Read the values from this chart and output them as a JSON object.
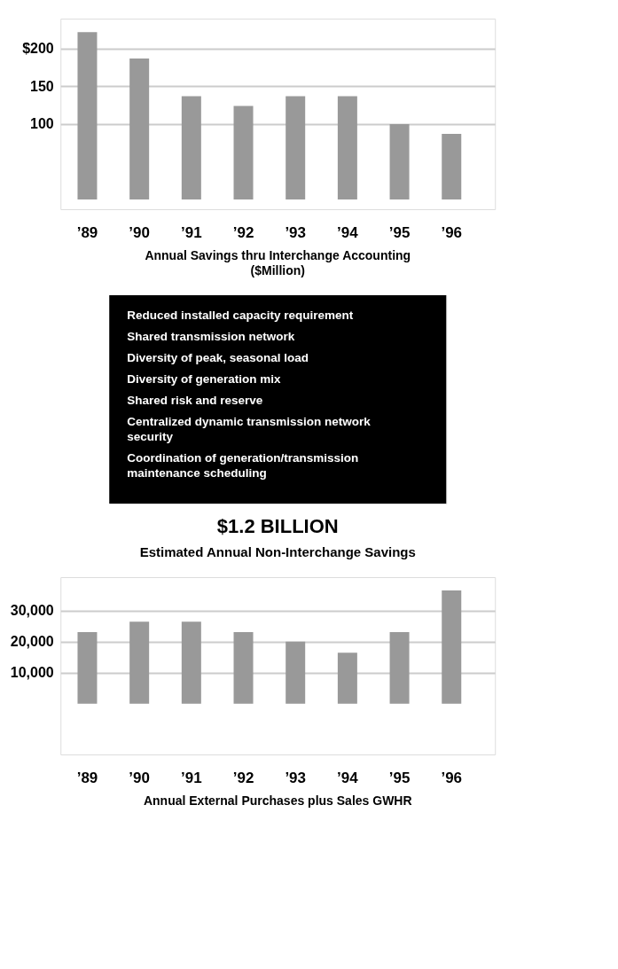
{
  "chart_data": [
    {
      "type": "bar",
      "title": "Annual Savings thru Interchange Accounting",
      "subtitle": "($Million)",
      "categories": [
        "’89",
        "’90",
        "’91",
        "’92",
        "’93",
        "’94",
        "’95",
        "’96"
      ],
      "values": [
        222,
        187,
        137,
        124,
        137,
        137,
        100,
        87
      ],
      "color": "#999999",
      "ylim": [
        -13,
        240
      ],
      "yticks": [
        {
          "value": 100,
          "label": "100"
        },
        {
          "value": 150,
          "label": "150"
        },
        {
          "value": 200,
          "label": "$200"
        }
      ],
      "grid": "y"
    },
    {
      "type": "other",
      "title": "$1.2 BILLION",
      "subtitle": "Estimated Annual Non-Interchange Savings",
      "annotations": [
        "Reduced installed capacity requirement",
        "Shared transmission network",
        "Diversity of peak, seasonal load",
        "Diversity of generation mix",
        "Shared risk and reserve",
        "Centralized dynamic transmission network\nsecurity",
        "Coordination of generation/transmission\nmaintenance scheduling"
      ]
    },
    {
      "type": "bar",
      "title": "Annual External Purchases plus Sales GWHR",
      "categories": [
        "’89",
        "’90",
        "’91",
        "’92",
        "’93",
        "’94",
        "’95",
        "’96"
      ],
      "values": [
        23000,
        26400,
        26400,
        23000,
        20000,
        16400,
        23000,
        36400
      ],
      "color": "#999999",
      "ylim": [
        -16300,
        40700
      ],
      "yticks": [
        {
          "value": 10000,
          "label": "10,000"
        },
        {
          "value": 20000,
          "label": "20,000"
        },
        {
          "value": 30000,
          "label": "30,000"
        }
      ],
      "grid": "y"
    }
  ]
}
